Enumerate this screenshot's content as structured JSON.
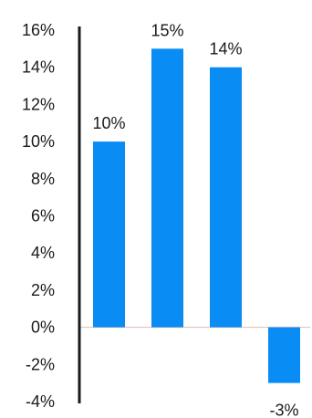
{
  "chart_data": {
    "type": "bar",
    "categories": [
      "",
      "",
      "",
      ""
    ],
    "values": [
      10,
      15,
      14,
      -3
    ],
    "data_labels": [
      "10%",
      "15%",
      "14%",
      "-3%"
    ],
    "title": "",
    "xlabel": "",
    "ylabel": "",
    "ylim": [
      -4,
      16
    ],
    "yticks": [
      -4,
      -2,
      0,
      2,
      4,
      6,
      8,
      10,
      12,
      14,
      16
    ],
    "ytick_labels": [
      "-4%",
      "-2%",
      "0%",
      "2%",
      "4%",
      "6%",
      "8%",
      "10%",
      "12%",
      "14%",
      "16%"
    ],
    "grid": false,
    "legend": "none",
    "bar_color": "#0a8cf5",
    "axis_color": "#1a1a1a",
    "zero_line_color": "#e6b8b8"
  }
}
